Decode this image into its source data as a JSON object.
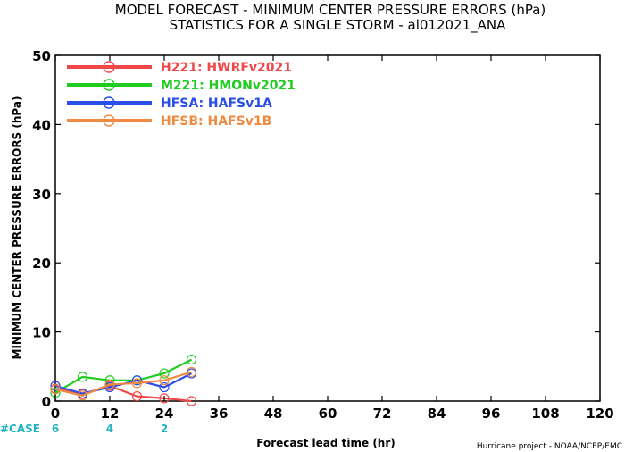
{
  "chart_data": {
    "type": "line",
    "title": "MODEL FORECAST - MINIMUM CENTER PRESSURE ERRORS (hPa)",
    "subtitle": "STATISTICS FOR A SINGLE STORM - al012021_ANA",
    "xlabel": "Forecast lead time (hr)",
    "ylabel": "MINIMUM CENTER PRESSURE ERRORS (hPa)",
    "xlim": [
      0,
      120
    ],
    "ylim": [
      0,
      50
    ],
    "x_ticks": [
      "0",
      "12",
      "24",
      "36",
      "48",
      "60",
      "72",
      "84",
      "96",
      "108",
      "120"
    ],
    "y_ticks": [
      "0",
      "10",
      "20",
      "30",
      "40",
      "50"
    ],
    "legend_position": "top-left",
    "series": [
      {
        "name": "H221: HWRFv2021",
        "color": "#f04848",
        "x": [
          0,
          6,
          12,
          18,
          24,
          30
        ],
        "values": [
          1.8,
          1.0,
          2.2,
          0.7,
          0.4,
          0.0
        ]
      },
      {
        "name": "M221: HMONv2021",
        "color": "#20cc20",
        "x": [
          0,
          6,
          12,
          18,
          24,
          30
        ],
        "values": [
          1.2,
          3.5,
          3.0,
          3.0,
          4.0,
          6.0
        ]
      },
      {
        "name": "HFSA: HAFSv1A",
        "color": "#2a4ee8",
        "x": [
          0,
          6,
          12,
          18,
          24,
          30
        ],
        "values": [
          2.2,
          1.1,
          2.0,
          3.0,
          2.0,
          4.0
        ]
      },
      {
        "name": "HFSB: HAFSv1B",
        "color": "#f08a40",
        "x": [
          0,
          6,
          12,
          18,
          24,
          30
        ],
        "values": [
          1.7,
          0.8,
          2.4,
          2.6,
          3.0,
          4.2
        ]
      }
    ],
    "cases": {
      "label": "#CASE",
      "entries": [
        {
          "x": 0,
          "count": "6"
        },
        {
          "x": 12,
          "count": "4"
        },
        {
          "x": 24,
          "count": "2"
        }
      ]
    },
    "credit": "Hurricane project - NOAA/NCEP/EMC"
  }
}
